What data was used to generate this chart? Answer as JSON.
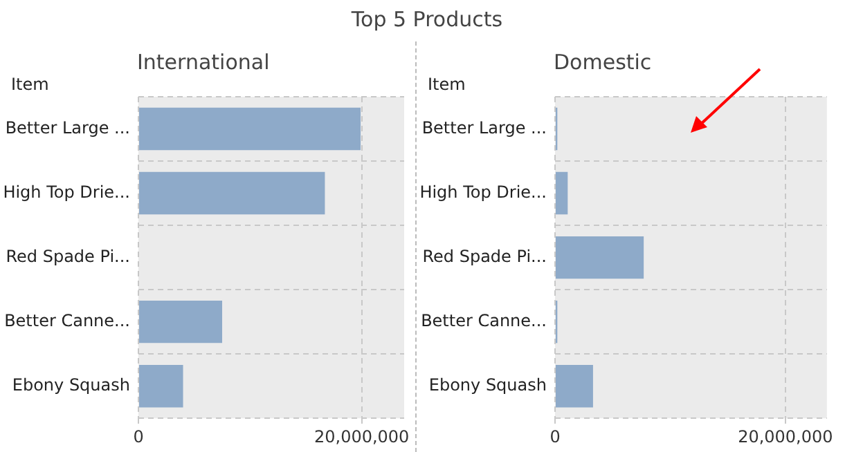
{
  "chart_data": [
    {
      "type": "bar",
      "title": "Top 5 Products",
      "subtitle": "International",
      "ylabel": "Item",
      "orientation": "horizontal",
      "categories": [
        "Better Large ...",
        "High Top Drie...",
        "Red Spade Pi...",
        "Better Canne...",
        "Ebony Squash"
      ],
      "values": [
        19900000,
        16700000,
        0,
        7500000,
        4000000
      ],
      "color": "#8eaac9",
      "xlim": [
        0,
        23800000
      ],
      "xticks": [
        0,
        {
          "value": 20000000,
          "label": "20,000,000"
        }
      ],
      "grid": true
    },
    {
      "type": "bar",
      "subtitle": "Domestic",
      "ylabel": "Item",
      "orientation": "horizontal",
      "categories": [
        "Better Large ...",
        "High Top Drie...",
        "Red Spade Pi...",
        "Better Canne...",
        "Ebony Squash"
      ],
      "values": [
        200000,
        1100000,
        7700000,
        200000,
        3300000
      ],
      "color": "#8eaac9",
      "xlim": [
        0,
        23600000
      ],
      "xticks": [
        0,
        {
          "value": 20000000,
          "label": "20,000,000"
        }
      ],
      "grid": true
    }
  ]
}
